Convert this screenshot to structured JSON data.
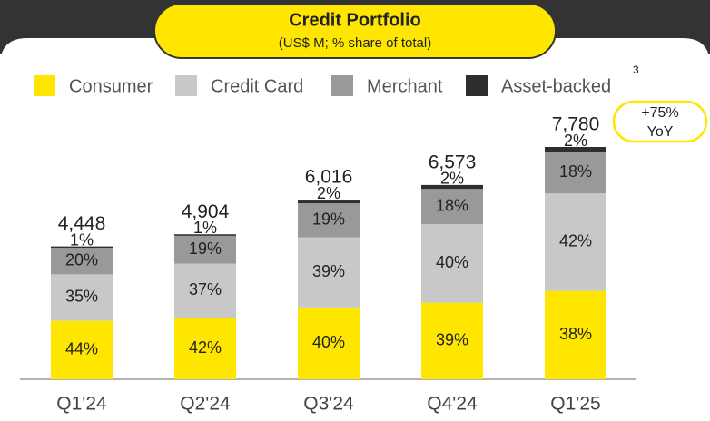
{
  "chart_data": {
    "type": "stacked_bar",
    "title": "Credit Portfolio",
    "subtitle": "(US$ M; % share of total)",
    "categories": [
      "Q1'24",
      "Q2'24",
      "Q3'24",
      "Q4'24",
      "Q1'25"
    ],
    "totals": {
      "values": [
        4448,
        4904,
        6016,
        6573,
        7780
      ],
      "value_labels": [
        "4,448",
        "4,904",
        "6,016",
        "6,573",
        "7,780"
      ]
    },
    "series": [
      {
        "name": "Consumer",
        "color": "#FFE600",
        "values": [
          44,
          42,
          40,
          39,
          38
        ],
        "value_labels": [
          "44%",
          "42%",
          "40%",
          "39%",
          "38%"
        ]
      },
      {
        "name": "Credit Card",
        "color": "#C8C8C8",
        "values": [
          35,
          37,
          39,
          40,
          42
        ],
        "value_labels": [
          "35%",
          "37%",
          "39%",
          "40%",
          "42%"
        ]
      },
      {
        "name": "Merchant",
        "color": "#999999",
        "values": [
          20,
          19,
          19,
          18,
          18
        ],
        "value_labels": [
          "20%",
          "19%",
          "19%",
          "18%",
          "18%"
        ]
      },
      {
        "name": "Asset-backed",
        "color": "#2E2E2E",
        "values": [
          1,
          1,
          2,
          2,
          2
        ],
        "value_labels": [
          "1%",
          "1%",
          "2%",
          "2%",
          "2%"
        ]
      }
    ],
    "legend_footnote": "3",
    "annotation": [
      "+75%",
      "YoY"
    ]
  }
}
